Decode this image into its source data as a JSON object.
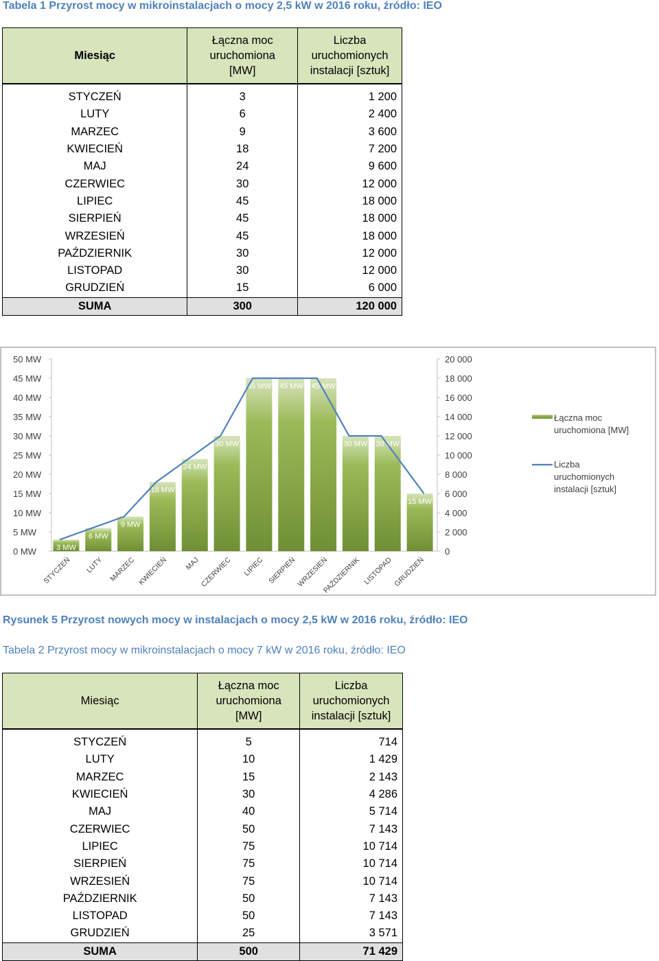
{
  "table1": {
    "caption": "Tabela 1 Przyrost mocy w mikroinstalacjach o mocy 2,5 kW w 2016 roku, źródło: IEO",
    "headers": {
      "month": "Miesiąc",
      "power_l1": "Łączna moc",
      "power_l2": "uruchomiona",
      "power_l3": "[MW]",
      "count_l1": "Liczba",
      "count_l2": "uruchomionych",
      "count_l3": "instalacji [sztuk]"
    },
    "rows": [
      {
        "month": "STYCZEŃ",
        "power": "3",
        "count": "1 200"
      },
      {
        "month": "LUTY",
        "power": "6",
        "count": "2 400"
      },
      {
        "month": "MARZEC",
        "power": "9",
        "count": "3 600"
      },
      {
        "month": "KWIECIEŃ",
        "power": "18",
        "count": "7 200"
      },
      {
        "month": "MAJ",
        "power": "24",
        "count": "9 600"
      },
      {
        "month": "CZERWIEC",
        "power": "30",
        "count": "12 000"
      },
      {
        "month": "LIPIEC",
        "power": "45",
        "count": "18 000"
      },
      {
        "month": "SIERPIEŃ",
        "power": "45",
        "count": "18 000"
      },
      {
        "month": "WRZESIEŃ",
        "power": "45",
        "count": "18 000"
      },
      {
        "month": "PAŹDZIERNIK",
        "power": "30",
        "count": "12 000"
      },
      {
        "month": "LISTOPAD",
        "power": "30",
        "count": "12 000"
      },
      {
        "month": "GRUDZIEŃ",
        "power": "15",
        "count": "6 000"
      }
    ],
    "sum": {
      "label": "SUMA",
      "power": "300",
      "count": "120 000"
    }
  },
  "chart_data": {
    "type": "bar",
    "categories": [
      "STYCZEŃ",
      "LUTY",
      "MARZEC",
      "KWIECIEŃ",
      "MAJ",
      "CZERWIEC",
      "LIPIEC",
      "SIERPIEŃ",
      "WRZESIEŃ",
      "PAŹDZIERNIK",
      "LISTOPAD",
      "GRUDZIEŃ"
    ],
    "series": [
      {
        "name": "Łączna moc uruchomiona [MW]",
        "type": "bar",
        "axis": "left",
        "values": [
          3,
          6,
          9,
          18,
          24,
          30,
          45,
          45,
          45,
          30,
          30,
          15
        ],
        "data_labels": [
          "3 MW",
          "6 MW",
          "9 MW",
          "18 MW",
          "24 MW",
          "30 MW",
          "45 MW",
          "45 MW",
          "45 MW",
          "30 MW",
          "30 MW",
          "15 MW"
        ],
        "color": "#77933c"
      },
      {
        "name": "Liczba uruchomionych instalacji [sztuk]",
        "type": "line",
        "axis": "right",
        "values": [
          1200,
          2400,
          3600,
          7200,
          9600,
          12000,
          18000,
          18000,
          18000,
          12000,
          12000,
          6000
        ],
        "color": "#4f81bd"
      }
    ],
    "legend_lines": [
      [
        "Łączna moc",
        "uruchomiona [MW]"
      ],
      [
        "Liczba",
        "uruchomionych",
        "instalacji [sztuk]"
      ]
    ],
    "y_left": {
      "range": [
        0,
        50
      ],
      "ticks": [
        "0 MW",
        "5 MW",
        "10 MW",
        "15 MW",
        "20 MW",
        "25 MW",
        "30 MW",
        "35 MW",
        "40 MW",
        "45 MW",
        "50 MW"
      ]
    },
    "y_right": {
      "range": [
        0,
        20000
      ],
      "ticks": [
        "0",
        "2 000",
        "4 000",
        "6 000",
        "8 000",
        "10 000",
        "12 000",
        "14 000",
        "16 000",
        "18 000",
        "20 000"
      ]
    },
    "grid": false,
    "legend": "right"
  },
  "figure_caption": "Rysunek 5 Przyrost nowych mocy w instalacjach o mocy 2,5 kW w 2016 roku, źródło: IEO",
  "table2": {
    "caption": "Tabela 2 Przyrost mocy w mikroinstalacjach o mocy 7 kW w 2016 roku, źródło: IEO",
    "headers": {
      "month": "Miesiąc",
      "power_l1": "Łączna moc",
      "power_l2": "uruchomiona",
      "power_l3": "[MW]",
      "count_l1": "Liczba",
      "count_l2": "uruchomionych",
      "count_l3": "instalacji [sztuk]"
    },
    "rows": [
      {
        "month": "STYCZEŃ",
        "power": "5",
        "count": "714"
      },
      {
        "month": "LUTY",
        "power": "10",
        "count": "1 429"
      },
      {
        "month": "MARZEC",
        "power": "15",
        "count": "2 143"
      },
      {
        "month": "KWIECIEŃ",
        "power": "30",
        "count": "4 286"
      },
      {
        "month": "MAJ",
        "power": "40",
        "count": "5 714"
      },
      {
        "month": "CZERWIEC",
        "power": "50",
        "count": "7 143"
      },
      {
        "month": "LIPIEC",
        "power": "75",
        "count": "10 714"
      },
      {
        "month": "SIERPIEŃ",
        "power": "75",
        "count": "10 714"
      },
      {
        "month": "WRZESIEŃ",
        "power": "75",
        "count": "10 714"
      },
      {
        "month": "PAŹDZIERNIK",
        "power": "50",
        "count": "7 143"
      },
      {
        "month": "LISTOPAD",
        "power": "50",
        "count": "7 143"
      },
      {
        "month": "GRUDZIEŃ",
        "power": "25",
        "count": "3 571"
      }
    ],
    "sum": {
      "label": "SUMA",
      "power": "500",
      "count": "71 429"
    }
  }
}
